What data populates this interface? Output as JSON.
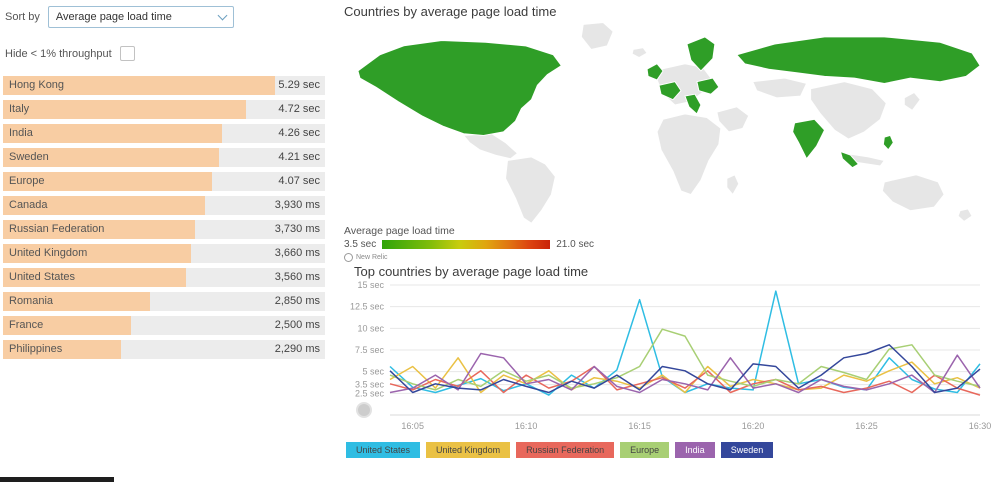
{
  "sort": {
    "label": "Sort by",
    "selected": "Average page load time"
  },
  "filter": {
    "label": "Hide < 1% throughput",
    "checked": false
  },
  "map": {
    "title": "Countries by average page load time",
    "legend_label": "Average page load time",
    "legend_min": "3.5 sec",
    "legend_max": "21.0 sec",
    "brand": "New Relic",
    "highlight_color": "#2f9e27",
    "muted_color": "#e6e6e6",
    "highlighted_countries": [
      "United States",
      "Canada",
      "Russian Federation",
      "India",
      "Sweden",
      "United Kingdom",
      "France",
      "Italy",
      "Romania",
      "Philippines",
      "Indonesia"
    ]
  },
  "chart_data": [
    {
      "type": "bar",
      "orientation": "horizontal",
      "bar_color": "#f8cda3",
      "categories": [
        "Hong Kong",
        "Italy",
        "India",
        "Sweden",
        "Europe",
        "Canada",
        "Russian Federation",
        "United Kingdom",
        "United States",
        "Romania",
        "France",
        "Philippines"
      ],
      "values": [
        5.29,
        4.72,
        4.26,
        4.21,
        4.07,
        3.93,
        3.73,
        3.66,
        3.56,
        2.85,
        2.5,
        2.29
      ],
      "value_labels": [
        "5.29 sec",
        "4.72 sec",
        "4.26 sec",
        "4.21 sec",
        "4.07 sec",
        "3,930 ms",
        "3,730 ms",
        "3,660 ms",
        "3,560 ms",
        "2,850 ms",
        "2,500 ms",
        "2,290 ms"
      ],
      "unit": "sec"
    },
    {
      "type": "line",
      "title": "Top countries by average page load time",
      "ylim": [
        0,
        15
      ],
      "y_ticks": [
        {
          "label": "15 sec",
          "value": 15
        },
        {
          "label": "12.5 sec",
          "value": 12.5
        },
        {
          "label": "10 sec",
          "value": 10
        },
        {
          "label": "7.5 sec",
          "value": 7.5
        },
        {
          "label": "5 sec",
          "value": 5
        },
        {
          "label": "3.5 sec",
          "value": 3.5
        },
        {
          "label": "2.5 sec",
          "value": 2.5
        }
      ],
      "x_ticks": [
        {
          "label": "16:05",
          "index": 1
        },
        {
          "label": "16:10",
          "index": 6
        },
        {
          "label": "16:15",
          "index": 11
        },
        {
          "label": "16:20",
          "index": 16
        },
        {
          "label": "16:25",
          "index": 21
        },
        {
          "label": "16:30",
          "index": 26
        }
      ],
      "series": [
        {
          "name": "United States",
          "color": "#2fbde3",
          "values": [
            5.6,
            3.2,
            2.6,
            3.4,
            4.2,
            2.8,
            3.6,
            2.3,
            4.6,
            3.1,
            5.2,
            13.3,
            4.4,
            2.6,
            3.6,
            3.1,
            2.9,
            14.3,
            3.6,
            4.1,
            3.2,
            2.9,
            6.6,
            4.1,
            3.0,
            2.6,
            5.9
          ]
        },
        {
          "name": "United Kingdom",
          "color": "#eac144",
          "values": [
            4.1,
            5.6,
            3.1,
            6.6,
            2.6,
            4.6,
            3.6,
            5.1,
            2.9,
            4.3,
            3.9,
            3.1,
            4.6,
            2.6,
            5.6,
            3.3,
            4.1,
            3.6,
            2.9,
            3.1,
            4.6,
            3.9,
            5.1,
            6.1,
            3.6,
            4.3,
            3.1
          ]
        },
        {
          "name": "Russian Federation",
          "color": "#e8685c",
          "values": [
            3.6,
            2.9,
            4.1,
            3.3,
            5.1,
            2.6,
            4.6,
            3.1,
            3.9,
            5.6,
            2.9,
            3.6,
            4.3,
            3.1,
            5.1,
            2.6,
            3.6,
            4.1,
            2.9,
            3.3,
            2.6,
            3.1,
            3.9,
            2.6,
            4.6,
            3.1,
            2.3
          ]
        },
        {
          "name": "Europe",
          "color": "#a8cf74",
          "values": [
            4.6,
            3.6,
            2.9,
            4.1,
            3.3,
            5.1,
            3.9,
            4.6,
            3.1,
            3.6,
            4.3,
            5.6,
            9.9,
            9.1,
            4.6,
            3.9,
            3.3,
            4.1,
            3.6,
            5.6,
            4.9,
            4.1,
            7.6,
            8.1,
            4.6,
            3.9,
            3.3
          ]
        },
        {
          "name": "India",
          "color": "#9b64ad",
          "values": [
            2.6,
            3.1,
            4.6,
            2.9,
            7.1,
            6.6,
            3.6,
            4.1,
            2.9,
            5.6,
            3.3,
            2.6,
            4.1,
            3.6,
            2.9,
            6.6,
            3.1,
            3.6,
            2.6,
            4.1,
            3.3,
            2.9,
            3.6,
            4.6,
            2.6,
            6.9,
            3.1
          ]
        },
        {
          "name": "Sweden",
          "color": "#34479b",
          "values": [
            5.1,
            2.6,
            3.6,
            3.1,
            2.9,
            4.1,
            3.3,
            2.6,
            3.9,
            3.1,
            4.6,
            2.9,
            5.6,
            5.1,
            3.6,
            2.9,
            5.9,
            5.6,
            3.1,
            4.6,
            6.6,
            7.1,
            8.1,
            5.6,
            2.6,
            3.1,
            5.3
          ]
        }
      ]
    }
  ]
}
